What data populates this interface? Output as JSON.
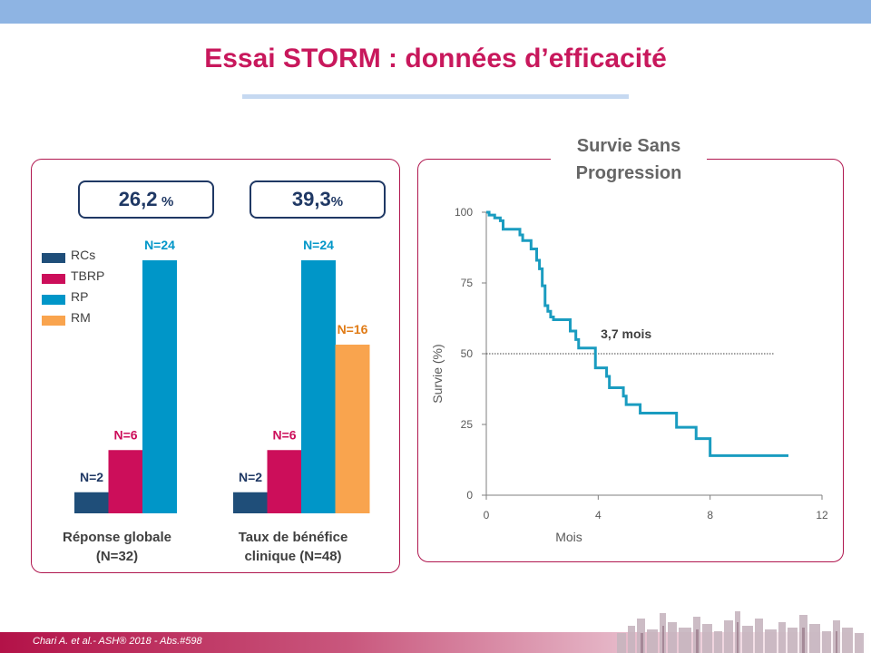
{
  "slide": {
    "title": "Essai STORM : données d’efficacité",
    "footer": "Chari A. et al.- ASH® 2018 - Abs.#598"
  },
  "colors": {
    "RCs": "#1f4e79",
    "TBRP": "#cc0e5a",
    "RP": "#0096c8",
    "RM": "#f9a44e",
    "accent": "#c8185c",
    "km_line": "#1a9cc0"
  },
  "response_boxes": [
    {
      "value": "26,2",
      "unit": "%"
    },
    {
      "value": "39,3",
      "unit": "%"
    }
  ],
  "chart_data": [
    {
      "type": "bar",
      "legend": [
        "RCs",
        "TBRP",
        "RP",
        "RM"
      ],
      "legend_position": "top-left",
      "categories": [
        "Réponse globale (N=32)",
        "Taux de bénéfice clinique (N=48)"
      ],
      "category_labels": [
        [
          "Réponse globale",
          "(N=32)"
        ],
        [
          "Taux de bénéfice",
          "clinique (N=48)"
        ]
      ],
      "series": [
        {
          "name": "RCs",
          "values": [
            2,
            2
          ],
          "labels": [
            "N=2",
            "N=2"
          ]
        },
        {
          "name": "TBRP",
          "values": [
            6,
            6
          ],
          "labels": [
            "N=6",
            "N=6"
          ]
        },
        {
          "name": "RP",
          "values": [
            24,
            24
          ],
          "labels": [
            "N=24",
            "N=24"
          ]
        },
        {
          "name": "RM",
          "values": [
            null,
            16
          ],
          "labels": [
            "",
            "N=16"
          ]
        }
      ],
      "ylim": [
        0,
        24
      ],
      "grid": false
    },
    {
      "type": "line",
      "title": [
        "Survie Sans",
        "Progression"
      ],
      "xlabel": "Mois",
      "ylabel": "Survie (%)",
      "xlim": [
        0,
        12
      ],
      "ylim": [
        0,
        100
      ],
      "xticks": [
        0,
        4,
        8,
        12
      ],
      "yticks": [
        0,
        25,
        50,
        75,
        100
      ],
      "median": {
        "x": 3.7,
        "y": 50,
        "label": "3,7 mois"
      },
      "series": [
        {
          "step": true,
          "points": [
            [
              0,
              100
            ],
            [
              0.1,
              99
            ],
            [
              0.3,
              98
            ],
            [
              0.5,
              97
            ],
            [
              0.6,
              94
            ],
            [
              1.1,
              94
            ],
            [
              1.2,
              92
            ],
            [
              1.3,
              90
            ],
            [
              1.5,
              90
            ],
            [
              1.6,
              87
            ],
            [
              1.8,
              83
            ],
            [
              1.9,
              80
            ],
            [
              2.0,
              74
            ],
            [
              2.1,
              67
            ],
            [
              2.2,
              65
            ],
            [
              2.3,
              63
            ],
            [
              2.4,
              62
            ],
            [
              2.9,
              62
            ],
            [
              3.0,
              58
            ],
            [
              3.2,
              55
            ],
            [
              3.3,
              52
            ],
            [
              3.5,
              52
            ],
            [
              3.8,
              52
            ],
            [
              3.9,
              45
            ],
            [
              4.2,
              45
            ],
            [
              4.3,
              42
            ],
            [
              4.4,
              38
            ],
            [
              4.8,
              38
            ],
            [
              4.9,
              35
            ],
            [
              5.0,
              32
            ],
            [
              5.4,
              32
            ],
            [
              5.5,
              29
            ],
            [
              6.7,
              29
            ],
            [
              6.8,
              24
            ],
            [
              7.4,
              24
            ],
            [
              7.5,
              20
            ],
            [
              7.9,
              20
            ],
            [
              8.0,
              14
            ],
            [
              10.8,
              14
            ]
          ]
        }
      ]
    }
  ]
}
